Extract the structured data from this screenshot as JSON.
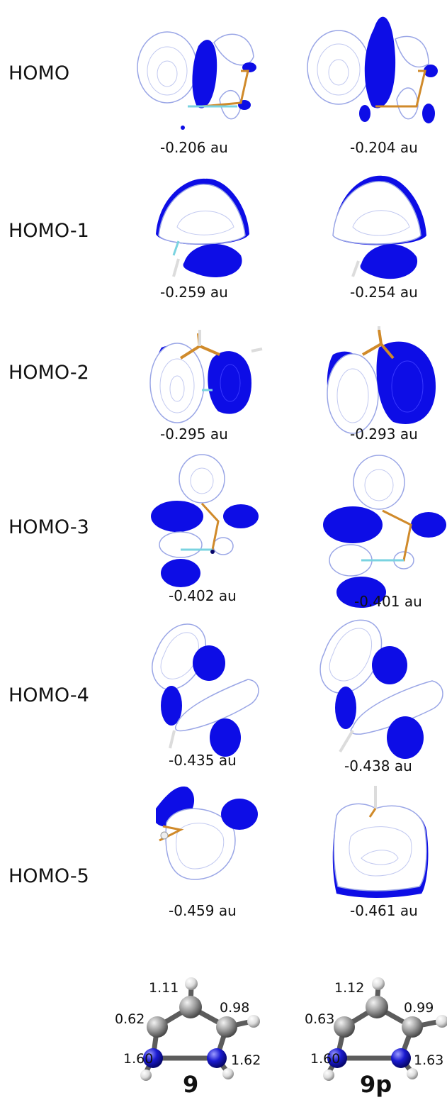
{
  "orbitals": [
    {
      "label": "HOMO",
      "energy_9": "-0.206 au",
      "energy_9p": "-0.204 au"
    },
    {
      "label": "HOMO-1",
      "energy_9": "-0.259 au",
      "energy_9p": "-0.254 au"
    },
    {
      "label": "HOMO-2",
      "energy_9": "-0.295 au",
      "energy_9p": "-0.293 au"
    },
    {
      "label": "HOMO-3",
      "energy_9": "-0.402 au",
      "energy_9p": "-0.401 au"
    },
    {
      "label": "HOMO-4",
      "energy_9": "-0.435 au",
      "energy_9p": "-0.438 au"
    },
    {
      "label": "HOMO-5",
      "energy_9": "-0.459 au",
      "energy_9p": "-0.461 au"
    }
  ],
  "structures": [
    {
      "name": "9",
      "labels": [
        "1.11",
        "0.62",
        "0.98",
        "1.60",
        "1.62"
      ]
    },
    {
      "name": "9p",
      "labels": [
        "1.12",
        "0.63",
        "0.99",
        "1.60",
        "1.63"
      ]
    }
  ],
  "colors": {
    "positive_lobe": "#0d0de6",
    "negative_lobe": "#ffffff",
    "contour": "#9aa6e6",
    "bond_orange": "#d08a2a",
    "bond_cyan": "#7ad3e0",
    "carbon": "#8a8a8a",
    "nitrogen": "#1414c8",
    "hydrogen": "#e6e6e6"
  }
}
